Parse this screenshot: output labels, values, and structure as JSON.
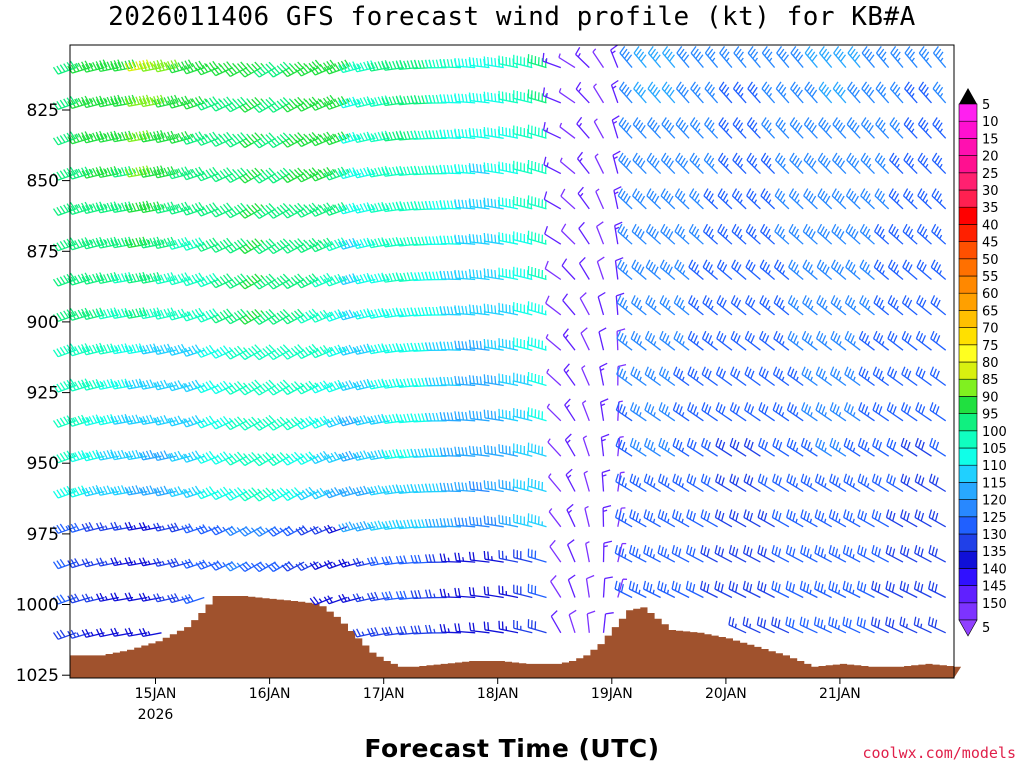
{
  "chart_data": {
    "type": "wind_barb_profile",
    "title": "2026011406 GFS forecast wind profile (kt) for KB#A",
    "xlabel": "Forecast Time (UTC)",
    "ylabel": "",
    "credit": "coolwx.com/models",
    "x_ticks": [
      {
        "hour": 18,
        "label": "15JAN",
        "sublabel": "2026"
      },
      {
        "hour": 42,
        "label": "16JAN",
        "sublabel": ""
      },
      {
        "hour": 66,
        "label": "17JAN",
        "sublabel": ""
      },
      {
        "hour": 90,
        "label": "18JAN",
        "sublabel": ""
      },
      {
        "hour": 114,
        "label": "19JAN",
        "sublabel": ""
      },
      {
        "hour": 138,
        "label": "20JAN",
        "sublabel": ""
      },
      {
        "hour": 162,
        "label": "21JAN",
        "sublabel": ""
      }
    ],
    "xlim_hours": [
      0,
      186
    ],
    "y_ticks": [
      825,
      850,
      875,
      900,
      925,
      950,
      975,
      1000,
      1025
    ],
    "ylim_hpa": [
      1026,
      802
    ],
    "barb_levels": [
      810,
      822.5,
      835,
      847.5,
      860,
      872.5,
      885,
      897.5,
      910,
      922.5,
      935,
      947.5,
      960,
      972.5,
      985,
      997.5,
      1010
    ],
    "barb_hours": [
      0,
      3,
      6,
      9,
      12,
      15,
      18,
      21,
      24,
      27,
      30,
      33,
      36,
      39,
      42,
      45,
      48,
      51,
      54,
      57,
      60,
      63,
      66,
      69,
      72,
      75,
      78,
      81,
      84,
      87,
      90,
      93,
      96,
      99,
      102,
      105,
      108,
      111,
      114,
      117,
      120,
      123,
      126,
      129,
      132,
      135,
      138,
      141,
      144,
      147,
      150,
      153,
      156,
      159,
      162,
      165,
      168,
      171,
      174,
      177,
      180,
      183
    ],
    "surface_pressure": [
      [
        0,
        1018
      ],
      [
        6,
        1018
      ],
      [
        12,
        1016
      ],
      [
        18,
        1013
      ],
      [
        24,
        1008
      ],
      [
        27,
        1003
      ],
      [
        30,
        997
      ],
      [
        36,
        997
      ],
      [
        42,
        998
      ],
      [
        48,
        999
      ],
      [
        52,
        1000
      ],
      [
        56,
        1005
      ],
      [
        60,
        1012
      ],
      [
        63,
        1017
      ],
      [
        66,
        1020
      ],
      [
        69,
        1022
      ],
      [
        72,
        1022
      ],
      [
        78,
        1021
      ],
      [
        84,
        1020
      ],
      [
        90,
        1020
      ],
      [
        96,
        1021
      ],
      [
        102,
        1021
      ],
      [
        105,
        1020
      ],
      [
        108,
        1018
      ],
      [
        111,
        1014
      ],
      [
        114,
        1008
      ],
      [
        117,
        1002
      ],
      [
        120,
        1001
      ],
      [
        123,
        1005
      ],
      [
        126,
        1009
      ],
      [
        132,
        1010
      ],
      [
        138,
        1012
      ],
      [
        144,
        1015
      ],
      [
        150,
        1018
      ],
      [
        156,
        1022
      ],
      [
        162,
        1021
      ],
      [
        168,
        1022
      ],
      [
        174,
        1022
      ],
      [
        180,
        1021
      ],
      [
        186,
        1022
      ]
    ],
    "colorbar": {
      "labels": [
        5,
        10,
        15,
        20,
        25,
        30,
        35,
        40,
        45,
        50,
        55,
        60,
        65,
        70,
        75,
        80,
        85,
        90,
        95,
        100,
        105,
        110,
        115,
        120,
        125,
        130,
        135,
        140,
        145,
        150
      ],
      "colors": [
        "#7d33ff",
        "#6020ff",
        "#3010ff",
        "#1010d8",
        "#2040e8",
        "#2060ff",
        "#2888ff",
        "#28a8ff",
        "#20d0ff",
        "#10ffe8",
        "#10ffc0",
        "#10f080",
        "#20e040",
        "#80f020",
        "#d8f010",
        "#ffff20",
        "#ffe000",
        "#ffc000",
        "#ffa000",
        "#ff8800",
        "#ff7000",
        "#ff5000",
        "#ff2000",
        "#ff0000",
        "#ff2050",
        "#ff2070",
        "#ff1090",
        "#ff10b0",
        "#ff10d0",
        "#ff20f0"
      ],
      "low_color": "#9040ff",
      "high_color": "#000000"
    },
    "colors": {
      "ground": "#a0522d",
      "frame": "#000000"
    }
  }
}
